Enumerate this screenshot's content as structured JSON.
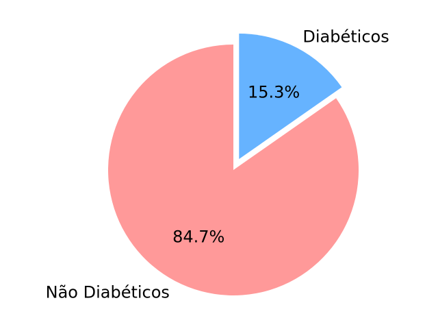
{
  "chart_data": {
    "type": "pie",
    "categories": [
      "Diabéticos",
      "Não Diabéticos"
    ],
    "values": [
      15.3,
      84.7
    ],
    "percent_labels": [
      "15.3%",
      "84.7%"
    ],
    "colors": [
      "#66b3ff",
      "#ff9999"
    ],
    "exploded": [
      "Diabéticos"
    ],
    "start_angle_deg": 90,
    "direction": "clockwise",
    "title": "",
    "legend": "none"
  }
}
